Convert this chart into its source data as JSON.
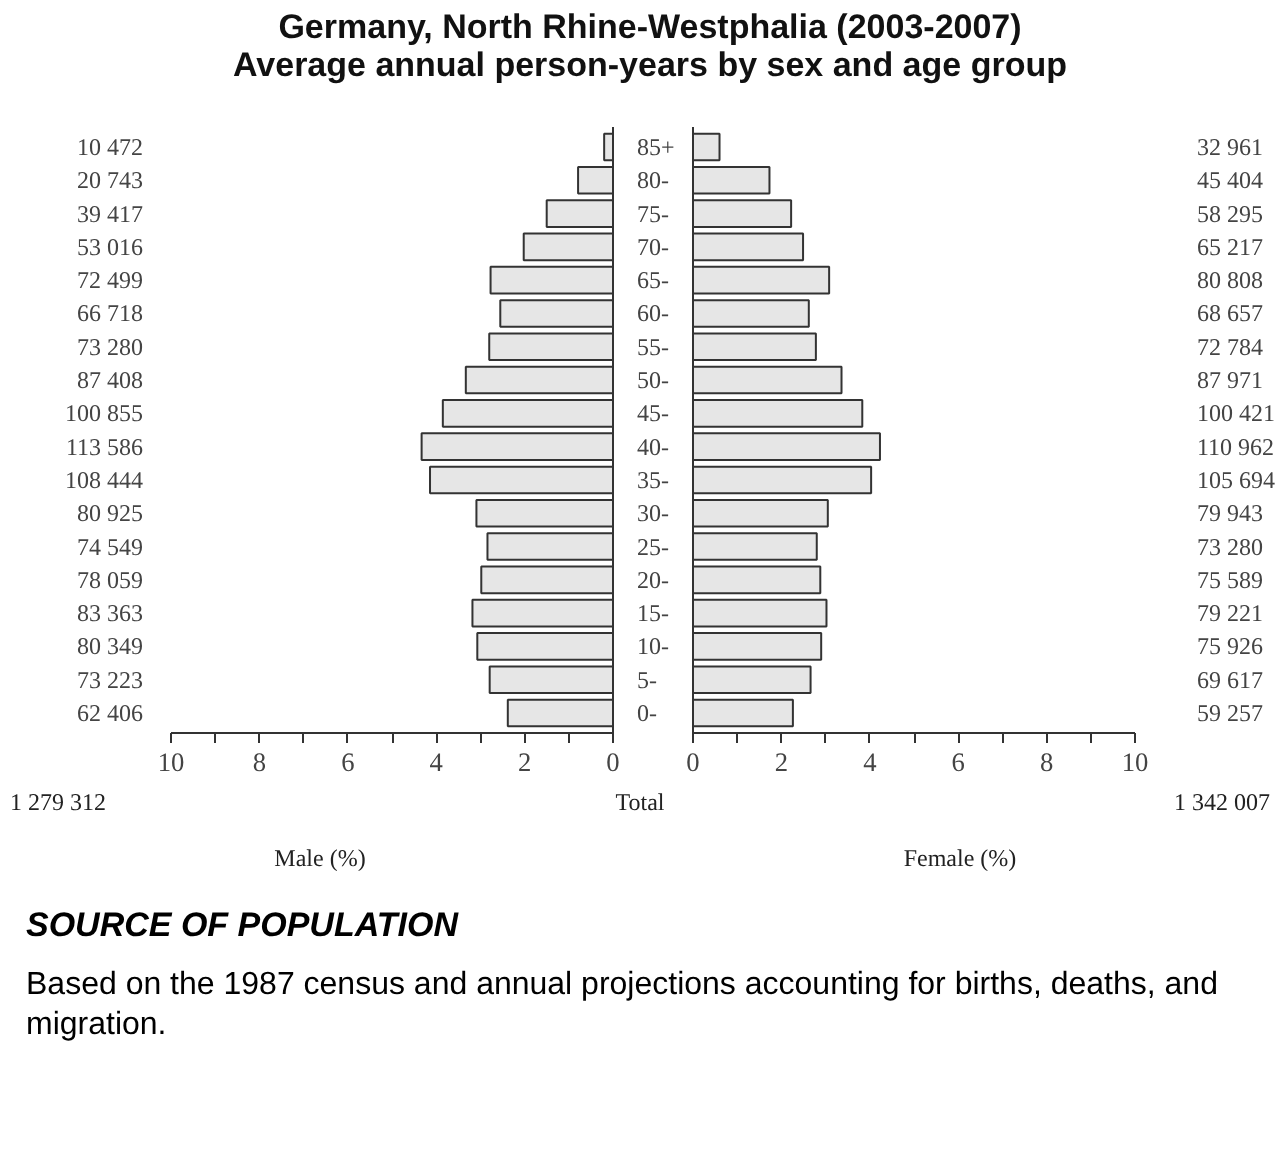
{
  "chart_data": [
    {
      "type": "bar",
      "orientation": "horizontal",
      "title": "Germany, North Rhine-Westphalia (2003-2007)",
      "subtitle": "Average annual person-years by sex and age group",
      "xlabel": "Male (%)",
      "color": "#e6e6e6",
      "categories": [
        "85+",
        "80-",
        "75-",
        "70-",
        "65-",
        "60-",
        "55-",
        "50-",
        "45-",
        "40-",
        "35-",
        "30-",
        "25-",
        "20-",
        "15-",
        "10-",
        "5-",
        "0-"
      ],
      "values": [
        0.2,
        0.79,
        1.5,
        2.02,
        2.77,
        2.55,
        2.8,
        3.33,
        3.85,
        4.33,
        4.14,
        3.09,
        2.84,
        2.98,
        3.18,
        3.07,
        2.79,
        2.38
      ],
      "xlim": [
        10,
        0
      ],
      "xticks": [
        10,
        {
          "value": 9,
          "label": null
        },
        8,
        {
          "value": 7,
          "label": null
        },
        6,
        {
          "value": 5,
          "label": null
        },
        4,
        {
          "value": 3,
          "label": null
        },
        2,
        {
          "value": 1,
          "label": null
        },
        0
      ],
      "annotations": [
        "10 472",
        "20 743",
        "39 417",
        "53 016",
        "72 499",
        "66 718",
        "73 280",
        "87 408",
        "100 855",
        "113 586",
        "108 444",
        "80 925",
        "74 549",
        "78 059",
        "83 363",
        "80 349",
        "73 223",
        "62 406",
        "1 279 312",
        "Total",
        "SOURCE OF POPULATION",
        "Based on the 1987 census and annual projections accounting for births, deaths, and migration."
      ]
    },
    {
      "type": "bar",
      "orientation": "horizontal",
      "xlabel": "Female (%)",
      "color": "#e6e6e6",
      "categories": [
        null,
        null,
        null,
        null,
        null,
        null,
        null,
        null,
        null,
        null,
        null,
        null,
        null,
        null,
        null,
        null,
        null,
        null
      ],
      "values": [
        0.6,
        1.73,
        2.22,
        2.49,
        3.08,
        2.62,
        2.78,
        3.36,
        3.83,
        4.23,
        4.03,
        3.05,
        2.8,
        2.88,
        3.02,
        2.9,
        2.66,
        2.26
      ],
      "xlim": [
        0,
        10
      ],
      "xticks": [
        0,
        {
          "value": 1,
          "label": null
        },
        2,
        {
          "value": 3,
          "label": null
        },
        4,
        {
          "value": 5,
          "label": null
        },
        6,
        {
          "value": 7,
          "label": null
        },
        8,
        {
          "value": 9,
          "label": null
        },
        10
      ],
      "annotations": [
        "32 961",
        "45 404",
        "58 295",
        "65 217",
        "80 808",
        "68 657",
        "72 784",
        "87 971",
        "100 421",
        "110 962",
        "105 694",
        "79 943",
        "73 280",
        "75 589",
        "79 221",
        "75 926",
        "69 617",
        "59 257",
        "1 342 007"
      ]
    }
  ]
}
